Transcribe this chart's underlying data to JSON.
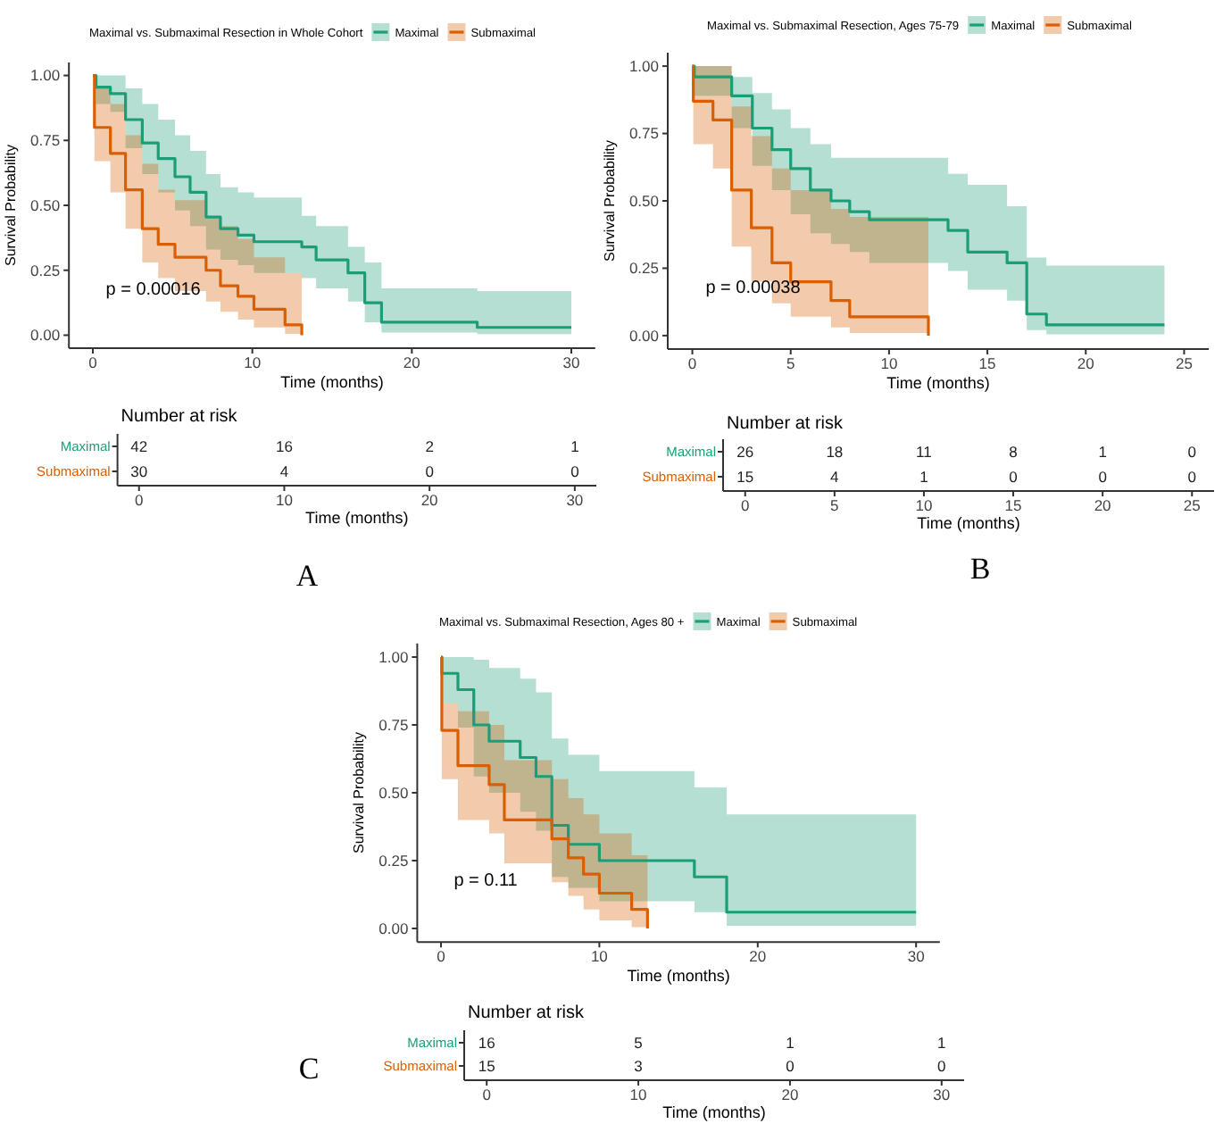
{
  "chart_data": [
    {
      "type": "step",
      "legend_title": "Maximal vs. Submaximal Resection in Whole Cohort",
      "legend": "top",
      "xlabel": "Time (months)",
      "ylabel": "Survival Probability",
      "xlim": [
        -1.5,
        31.5
      ],
      "ylim": [
        -0.05,
        1.05
      ],
      "xticks": [
        0,
        10,
        20,
        30
      ],
      "yticks": [
        {
          "value": 0,
          "label": "0.00"
        },
        {
          "value": 0.25,
          "label": "0.25"
        },
        {
          "value": 0.5,
          "label": "0.50"
        },
        {
          "value": 0.75,
          "label": "0.75"
        },
        {
          "value": 1,
          "label": "1.00"
        }
      ],
      "annotations": [
        "p = 0.00016",
        "A"
      ],
      "series": [
        {
          "name": "Maximal",
          "color": "#1b9e77",
          "x": [
            0,
            0.2,
            1.1,
            2.05,
            3.1,
            4.1,
            5.15,
            6.1,
            7.1,
            8.0,
            9.1,
            10.1,
            13.1,
            14.0,
            16.0,
            17.05,
            18.1,
            24.1,
            30
          ],
          "values": [
            1,
            0.955,
            0.93,
            0.83,
            0.74,
            0.68,
            0.61,
            0.55,
            0.455,
            0.41,
            0.385,
            0.36,
            0.34,
            0.29,
            0.24,
            0.125,
            0.05,
            0.03,
            0.03
          ],
          "lower": [
            1,
            0.89,
            0.86,
            0.72,
            0.62,
            0.55,
            0.48,
            0.42,
            0.33,
            0.29,
            0.27,
            0.24,
            0.22,
            0.18,
            0.13,
            0.05,
            0.01,
            0.004,
            0.004
          ],
          "upper": [
            1,
            1,
            1,
            0.95,
            0.89,
            0.83,
            0.77,
            0.71,
            0.62,
            0.57,
            0.55,
            0.53,
            0.46,
            0.42,
            0.34,
            0.28,
            0.18,
            0.17,
            0.17
          ]
        },
        {
          "name": "Submaximal",
          "color": "#d95f02",
          "x": [
            0,
            0.1,
            1.1,
            2.05,
            3.1,
            4.1,
            5.15,
            7.1,
            8.0,
            9.1,
            10.1,
            12.05,
            13.1
          ],
          "values": [
            1,
            0.8,
            0.7,
            0.56,
            0.41,
            0.35,
            0.3,
            0.25,
            0.19,
            0.15,
            0.1,
            0.04,
            0
          ],
          "lower": [
            1,
            0.67,
            0.55,
            0.41,
            0.28,
            0.22,
            0.17,
            0.13,
            0.09,
            0.06,
            0.03,
            0.005,
            0
          ],
          "upper": [
            1,
            0.95,
            0.89,
            0.77,
            0.66,
            0.56,
            0.52,
            0.45,
            0.42,
            0.37,
            0.3,
            0.24,
            0
          ]
        }
      ]
    },
    {
      "type": "heatmap",
      "title": "Number at risk",
      "xlabel": "Time (months)",
      "categories": [
        "0",
        "10",
        "20",
        "30"
      ],
      "y_categories": [
        "Maximal",
        "Submaximal"
      ],
      "data_labels": true,
      "cells": [
        [
          42,
          16,
          2,
          1
        ],
        [
          30,
          4,
          0,
          0
        ]
      ]
    },
    {
      "type": "step",
      "legend_title": "Maximal vs. Submaximal Resection, Ages 75-79",
      "legend": "top",
      "xlabel": "Time (months)",
      "ylabel": "Survival Probability",
      "xlim": [
        -1.25,
        26.25
      ],
      "ylim": [
        -0.05,
        1.05
      ],
      "xticks": [
        0,
        5,
        10,
        15,
        20,
        25
      ],
      "yticks": [
        {
          "value": 0,
          "label": "0.00"
        },
        {
          "value": 0.25,
          "label": "0.25"
        },
        {
          "value": 0.5,
          "label": "0.50"
        },
        {
          "value": 0.75,
          "label": "0.75"
        },
        {
          "value": 1,
          "label": "1.00"
        }
      ],
      "annotations": [
        "p = 0.00038",
        "B"
      ],
      "series": [
        {
          "name": "Maximal",
          "color": "#1b9e77",
          "x": [
            0,
            0.1,
            2.0,
            3.05,
            4.05,
            5.0,
            6.0,
            7.05,
            8.0,
            9.0,
            13.0,
            14.0,
            16.0,
            17.0,
            18.0,
            24.0
          ],
          "values": [
            1,
            0.96,
            0.89,
            0.77,
            0.69,
            0.62,
            0.54,
            0.5,
            0.46,
            0.43,
            0.39,
            0.31,
            0.27,
            0.08,
            0.04,
            0.04
          ],
          "lower": [
            1,
            0.89,
            0.77,
            0.63,
            0.54,
            0.45,
            0.38,
            0.34,
            0.31,
            0.27,
            0.24,
            0.17,
            0.13,
            0.02,
            0.005,
            0.005
          ],
          "upper": [
            1,
            1,
            0.96,
            0.9,
            0.84,
            0.77,
            0.71,
            0.66,
            0.66,
            0.66,
            0.6,
            0.56,
            0.48,
            0.29,
            0.26,
            0.26
          ]
        },
        {
          "name": "Submaximal",
          "color": "#d95f02",
          "x": [
            0,
            0.05,
            1.05,
            2.0,
            3.0,
            4.05,
            5.0,
            7.05,
            8.0,
            12.0
          ],
          "values": [
            1,
            0.87,
            0.8,
            0.54,
            0.4,
            0.27,
            0.2,
            0.13,
            0.07,
            0
          ],
          "lower": [
            1,
            0.71,
            0.62,
            0.33,
            0.2,
            0.12,
            0.07,
            0.03,
            0.01,
            0
          ],
          "upper": [
            1,
            1,
            1,
            0.85,
            0.74,
            0.62,
            0.54,
            0.47,
            0.44,
            0
          ]
        }
      ]
    },
    {
      "type": "heatmap",
      "title": "Number at risk",
      "xlabel": "Time (months)",
      "categories": [
        "0",
        "5",
        "10",
        "15",
        "20",
        "25"
      ],
      "y_categories": [
        "Maximal",
        "Submaximal"
      ],
      "data_labels": true,
      "cells": [
        [
          26,
          18,
          11,
          8,
          1,
          0
        ],
        [
          15,
          4,
          1,
          0,
          0,
          0
        ]
      ]
    },
    {
      "type": "step",
      "legend_title": "Maximal vs. Submaximal Resection, Ages 80 +",
      "legend": "top",
      "xlabel": "Time (months)",
      "ylabel": "Survival Probability",
      "xlim": [
        -1.5,
        31.5
      ],
      "ylim": [
        -0.05,
        1.05
      ],
      "xticks": [
        0,
        10,
        20,
        30
      ],
      "yticks": [
        {
          "value": 0,
          "label": "0.00"
        },
        {
          "value": 0.25,
          "label": "0.25"
        },
        {
          "value": 0.5,
          "label": "0.50"
        },
        {
          "value": 0.75,
          "label": "0.75"
        },
        {
          "value": 1,
          "label": "1.00"
        }
      ],
      "annotations": [
        "p = 0.11",
        "C"
      ],
      "series": [
        {
          "name": "Maximal",
          "color": "#1b9e77",
          "x": [
            0,
            0.05,
            1.07,
            2.07,
            3.04,
            5.0,
            6.0,
            7.0,
            8.04,
            10.0,
            16.0,
            18.04,
            30
          ],
          "values": [
            1,
            0.94,
            0.88,
            0.75,
            0.69,
            0.63,
            0.56,
            0.38,
            0.31,
            0.25,
            0.19,
            0.06,
            0.06
          ],
          "lower": [
            1,
            0.83,
            0.74,
            0.56,
            0.5,
            0.43,
            0.36,
            0.19,
            0.15,
            0.1,
            0.06,
            0.01,
            0.01
          ],
          "upper": [
            1,
            1,
            1,
            0.99,
            0.96,
            0.92,
            0.87,
            0.7,
            0.64,
            0.58,
            0.52,
            0.42,
            0.42
          ]
        },
        {
          "name": "Submaximal",
          "color": "#d95f02",
          "x": [
            0,
            0.05,
            1.07,
            3.04,
            4.0,
            7.0,
            8.04,
            9.0,
            10.0,
            12.04,
            13.04
          ],
          "values": [
            1,
            0.73,
            0.6,
            0.53,
            0.4,
            0.33,
            0.26,
            0.2,
            0.13,
            0.07,
            0
          ],
          "lower": [
            1,
            0.55,
            0.4,
            0.35,
            0.24,
            0.17,
            0.12,
            0.07,
            0.03,
            0.005,
            0
          ],
          "upper": [
            1,
            0.83,
            0.8,
            0.75,
            0.62,
            0.55,
            0.48,
            0.42,
            0.35,
            0.27,
            0
          ]
        }
      ]
    },
    {
      "type": "heatmap",
      "title": "Number at risk",
      "xlabel": "Time (months)",
      "categories": [
        "0",
        "10",
        "20",
        "30"
      ],
      "y_categories": [
        "Maximal",
        "Submaximal"
      ],
      "data_labels": true,
      "cells": [
        [
          16,
          5,
          1,
          1
        ],
        [
          15,
          3,
          0,
          0
        ]
      ]
    }
  ]
}
